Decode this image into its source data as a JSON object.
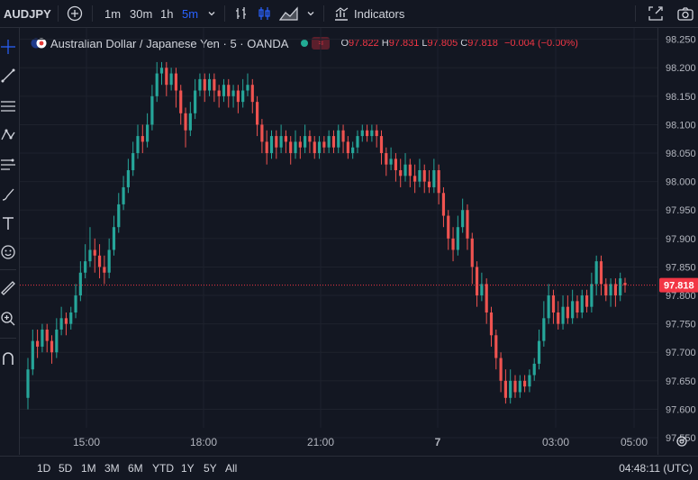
{
  "topbar": {
    "symbol": "AUDJPY",
    "intervals": [
      "1m",
      "30m",
      "1h",
      "5m"
    ],
    "active_interval": "5m",
    "indicators_label": "Indicators"
  },
  "legend": {
    "title": "Australian Dollar / Japanese Yen · 5 · OANDA",
    "open_key": "O",
    "open": "97.822",
    "high_key": "H",
    "high": "97.831",
    "low_key": "L",
    "low": "97.805",
    "close_key": "C",
    "close": "97.818",
    "change": "−0.004 (−0.00%)"
  },
  "price_axis": {
    "labels": [
      "98.250",
      "98.200",
      "98.150",
      "98.100",
      "98.050",
      "98.000",
      "97.950",
      "97.900",
      "97.850",
      "97.818",
      "97.800",
      "97.750",
      "97.700",
      "97.650",
      "97.600",
      "97.550"
    ],
    "last_price_label": "97.818"
  },
  "time_axis": {
    "labels": [
      "15:00",
      "18:00",
      "21:00",
      "7",
      "03:00",
      "05:00"
    ]
  },
  "bottombar": {
    "ranges": [
      "1D",
      "5D",
      "1M",
      "3M",
      "6M",
      "YTD",
      "1Y",
      "5Y",
      "All"
    ],
    "clock": "04:48:11 (UTC)"
  },
  "colors": {
    "background": "#131722",
    "up": "#26a69a",
    "down": "#ef5350",
    "accent": "#2962ff",
    "last_price": "#f23645"
  },
  "chart_data": {
    "type": "candlestick",
    "ylim": [
      97.52,
      98.27
    ],
    "last_price": 97.818,
    "x": [
      "15:00",
      "18:00",
      "21:00",
      "7",
      "03:00",
      "05:00"
    ],
    "candles": [
      [
        97.62,
        97.67,
        97.6,
        97.69
      ],
      [
        97.67,
        97.72,
        97.66,
        97.74
      ],
      [
        97.72,
        97.71,
        97.69,
        97.74
      ],
      [
        97.71,
        97.74,
        97.7,
        97.75
      ],
      [
        97.74,
        97.72,
        97.7,
        97.75
      ],
      [
        97.72,
        97.7,
        97.68,
        97.73
      ],
      [
        97.7,
        97.74,
        97.69,
        97.76
      ],
      [
        97.74,
        97.76,
        97.73,
        97.78
      ],
      [
        97.76,
        97.75,
        97.73,
        97.77
      ],
      [
        97.75,
        97.77,
        97.74,
        97.78
      ],
      [
        97.77,
        97.8,
        97.76,
        97.82
      ],
      [
        97.8,
        97.84,
        97.79,
        97.86
      ],
      [
        97.84,
        97.86,
        97.83,
        97.89
      ],
      [
        97.86,
        97.88,
        97.85,
        97.92
      ],
      [
        97.88,
        97.87,
        97.84,
        97.9
      ],
      [
        97.87,
        97.85,
        97.83,
        97.89
      ],
      [
        97.85,
        97.84,
        97.82,
        97.87
      ],
      [
        97.84,
        97.88,
        97.83,
        97.9
      ],
      [
        97.88,
        97.92,
        97.87,
        97.94
      ],
      [
        97.92,
        97.96,
        97.91,
        97.98
      ],
      [
        97.96,
        97.99,
        97.95,
        98.01
      ],
      [
        97.99,
        98.02,
        97.98,
        98.04
      ],
      [
        98.02,
        98.05,
        98.01,
        98.07
      ],
      [
        98.05,
        98.08,
        98.04,
        98.1
      ],
      [
        98.08,
        98.07,
        98.05,
        98.1
      ],
      [
        98.07,
        98.1,
        98.06,
        98.12
      ],
      [
        98.1,
        98.15,
        98.09,
        98.17
      ],
      [
        98.15,
        98.19,
        98.14,
        98.21
      ],
      [
        98.19,
        98.2,
        98.17,
        98.21
      ],
      [
        98.2,
        98.17,
        98.15,
        98.21
      ],
      [
        98.17,
        98.19,
        98.16,
        98.2
      ],
      [
        98.19,
        98.16,
        98.13,
        98.2
      ],
      [
        98.16,
        98.12,
        98.1,
        98.17
      ],
      [
        98.12,
        98.09,
        98.06,
        98.13
      ],
      [
        98.09,
        98.12,
        98.08,
        98.14
      ],
      [
        98.12,
        98.16,
        98.11,
        98.18
      ],
      [
        98.16,
        98.18,
        98.15,
        98.19
      ],
      [
        98.18,
        98.16,
        98.14,
        98.19
      ],
      [
        98.16,
        98.18,
        98.15,
        98.19
      ],
      [
        98.18,
        98.16,
        98.14,
        98.19
      ],
      [
        98.16,
        98.15,
        98.13,
        98.17
      ],
      [
        98.15,
        98.17,
        98.14,
        98.18
      ],
      [
        98.17,
        98.15,
        98.13,
        98.18
      ],
      [
        98.15,
        98.16,
        98.13,
        98.17
      ],
      [
        98.16,
        98.14,
        98.12,
        98.17
      ],
      [
        98.14,
        98.16,
        98.13,
        98.18
      ],
      [
        98.16,
        98.17,
        98.15,
        98.19
      ],
      [
        98.17,
        98.14,
        98.12,
        98.18
      ],
      [
        98.14,
        98.1,
        98.08,
        98.15
      ],
      [
        98.1,
        98.07,
        98.05,
        98.11
      ],
      [
        98.07,
        98.05,
        98.03,
        98.09
      ],
      [
        98.05,
        98.08,
        98.04,
        98.09
      ],
      [
        98.08,
        98.06,
        98.04,
        98.09
      ],
      [
        98.06,
        98.08,
        98.05,
        98.1
      ],
      [
        98.08,
        98.07,
        98.05,
        98.09
      ],
      [
        98.07,
        98.05,
        98.03,
        98.08
      ],
      [
        98.05,
        98.07,
        98.04,
        98.09
      ],
      [
        98.07,
        98.06,
        98.04,
        98.08
      ],
      [
        98.06,
        98.08,
        98.05,
        98.1
      ],
      [
        98.08,
        98.07,
        98.05,
        98.09
      ],
      [
        98.07,
        98.05,
        98.04,
        98.08
      ],
      [
        98.05,
        98.07,
        98.04,
        98.08
      ],
      [
        98.07,
        98.06,
        98.05,
        98.08
      ],
      [
        98.06,
        98.08,
        98.05,
        98.09
      ],
      [
        98.08,
        98.06,
        98.05,
        98.09
      ],
      [
        98.06,
        98.09,
        98.05,
        98.1
      ],
      [
        98.09,
        98.07,
        98.05,
        98.1
      ],
      [
        98.07,
        98.05,
        98.04,
        98.08
      ],
      [
        98.05,
        98.06,
        98.04,
        98.07
      ],
      [
        98.06,
        98.08,
        98.05,
        98.09
      ],
      [
        98.08,
        98.09,
        98.07,
        98.1
      ],
      [
        98.09,
        98.08,
        98.07,
        98.1
      ],
      [
        98.08,
        98.09,
        98.07,
        98.1
      ],
      [
        98.09,
        98.08,
        98.06,
        98.1
      ],
      [
        98.08,
        98.05,
        98.03,
        98.09
      ],
      [
        98.05,
        98.03,
        98.01,
        98.06
      ],
      [
        98.03,
        98.04,
        98.02,
        98.06
      ],
      [
        98.04,
        98.02,
        98.0,
        98.05
      ],
      [
        98.02,
        98.01,
        97.99,
        98.04
      ],
      [
        98.01,
        98.03,
        98.0,
        98.05
      ],
      [
        98.03,
        98.01,
        97.99,
        98.04
      ],
      [
        98.01,
        98.0,
        97.98,
        98.03
      ],
      [
        98.0,
        98.02,
        97.99,
        98.04
      ],
      [
        98.02,
        98.0,
        97.98,
        98.03
      ],
      [
        98.0,
        97.99,
        97.98,
        98.02
      ],
      [
        97.99,
        98.02,
        97.98,
        98.04
      ],
      [
        98.02,
        97.98,
        97.96,
        98.03
      ],
      [
        97.98,
        97.94,
        97.92,
        97.99
      ],
      [
        97.94,
        97.9,
        97.88,
        97.95
      ],
      [
        97.9,
        97.88,
        97.86,
        97.92
      ],
      [
        97.88,
        97.92,
        97.87,
        97.94
      ],
      [
        97.92,
        97.95,
        97.91,
        97.97
      ],
      [
        97.95,
        97.9,
        97.88,
        97.96
      ],
      [
        97.9,
        97.85,
        97.82,
        97.91
      ],
      [
        97.85,
        97.8,
        97.78,
        97.86
      ],
      [
        97.8,
        97.82,
        97.79,
        97.84
      ],
      [
        97.82,
        97.77,
        97.75,
        97.83
      ],
      [
        97.77,
        97.73,
        97.71,
        97.78
      ],
      [
        97.73,
        97.69,
        97.67,
        97.74
      ],
      [
        97.69,
        97.65,
        97.63,
        97.7
      ],
      [
        97.65,
        97.62,
        97.61,
        97.67
      ],
      [
        97.62,
        97.65,
        97.61,
        97.67
      ],
      [
        97.65,
        97.63,
        97.62,
        97.66
      ],
      [
        97.63,
        97.65,
        97.62,
        97.66
      ],
      [
        97.65,
        97.64,
        97.63,
        97.66
      ],
      [
        97.64,
        97.66,
        97.63,
        97.67
      ],
      [
        97.66,
        97.68,
        97.65,
        97.69
      ],
      [
        97.68,
        97.72,
        97.67,
        97.74
      ],
      [
        97.72,
        97.76,
        97.71,
        97.79
      ],
      [
        97.76,
        97.8,
        97.75,
        97.82
      ],
      [
        97.8,
        97.77,
        97.75,
        97.81
      ],
      [
        97.77,
        97.75,
        97.74,
        97.79
      ],
      [
        97.75,
        97.78,
        97.74,
        97.8
      ],
      [
        97.78,
        97.76,
        97.75,
        97.8
      ],
      [
        97.76,
        97.79,
        97.75,
        97.81
      ],
      [
        97.79,
        97.77,
        97.76,
        97.8
      ],
      [
        97.77,
        97.8,
        97.76,
        97.81
      ],
      [
        97.8,
        97.78,
        97.77,
        97.81
      ],
      [
        97.78,
        97.82,
        97.77,
        97.84
      ],
      [
        97.82,
        97.86,
        97.8,
        97.87
      ],
      [
        97.86,
        97.82,
        97.8,
        97.87
      ],
      [
        97.82,
        97.8,
        97.79,
        97.83
      ],
      [
        97.8,
        97.82,
        97.78,
        97.83
      ],
      [
        97.82,
        97.8,
        97.78,
        97.83
      ],
      [
        97.8,
        97.83,
        97.79,
        97.84
      ],
      [
        97.822,
        97.818,
        97.805,
        97.831
      ]
    ]
  }
}
